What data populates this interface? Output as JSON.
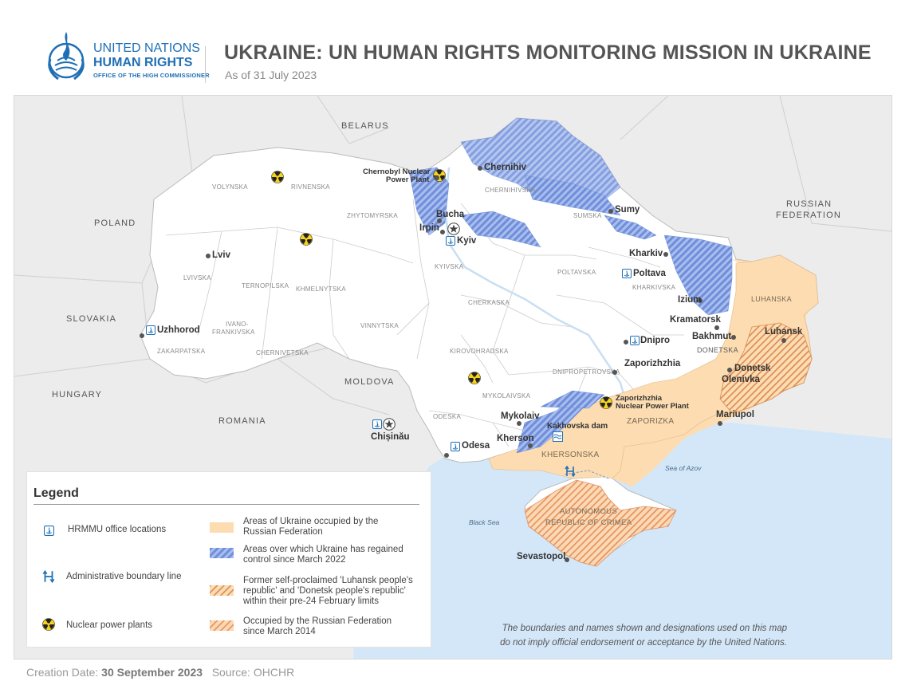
{
  "header": {
    "logo_line1": "UNITED NATIONS",
    "logo_line2": "HUMAN RIGHTS",
    "logo_line3": "OFFICE OF THE HIGH COMMISSIONER",
    "title": "UKRAINE: UN HUMAN RIGHTS MONITORING MISSION IN UKRAINE",
    "subtitle": "As of 31 July 2023"
  },
  "map": {
    "countries": {
      "belarus": "BELARUS",
      "russia_line1": "RUSSIAN",
      "russia_line2": "FEDERATION",
      "poland": "POLAND",
      "slovakia": "SLOVAKIA",
      "hungary": "HUNGARY",
      "romania": "ROMANIA",
      "moldova": "MOLDOVA"
    },
    "oblasts": {
      "volynska": "VOLYNSKA",
      "rivnenska": "RIVNENSKA",
      "zhytomyrska": "ZHYTOMYRSKA",
      "chernihivska": "CHERNIHIVSKA",
      "sumska": "SUMSKA",
      "lvivska": "LVIVSKA",
      "ternopilska": "TERNOPILSKA",
      "khmelnytska": "KHMELNYTSKA",
      "kyivska": "KYIVSKA",
      "poltavska": "POLTAVSKA",
      "kharkivska": "KHARKIVSKA",
      "luhanska": "LUHANSKA",
      "ivano_line1": "IVANO-",
      "ivano_line2": "FRANKIVSKA",
      "zakarpatska": "ZAKARPATSKA",
      "chernivetska": "CHERNIVETSKA",
      "vinnytska": "VINNYTSKA",
      "cherkaska": "CHERKASKA",
      "kirovohradska": "KIROVOHRADSKA",
      "dnipropetrovska": "DNIPROPETROVSKA",
      "donetska": "DONETSKA",
      "mykolaivska": "MYKOLAIVSKA",
      "odeska": "ODESKA",
      "zaporizka": "ZAPORIZKA",
      "khersonska": "KHERSONSKA",
      "crimea_line1": "AUTONOMOUS",
      "crimea_line2": "REPUBLIC OF CRIMEA"
    },
    "cities": {
      "chernobyl_line1": "Chernobyl Nuclear",
      "chernobyl_line2": "Power Plant",
      "chernihiv": "Chernihiv",
      "sumy": "Sumy",
      "bucha": "Bucha",
      "irpin": "Irpin",
      "kyiv": "Kyiv",
      "lviv": "Lviv",
      "kharkiv": "Kharkiv",
      "poltava": "Poltava",
      "izium": "Izium",
      "kramatorsk": "Kramatorsk",
      "bakhmut": "Bakhmut",
      "luhansk": "Luhansk",
      "uzhhorod": "Uzhhorod",
      "dnipro": "Dnipro",
      "zaporizhzhia": "Zaporizhzhia",
      "donetsk": "Donetsk",
      "olenivka": "Olenivka",
      "znpp_line1": "Zaporizhzhia",
      "znpp_line2": "Nuclear Power Plant",
      "mykolaiv": "Mykolaiv",
      "kakhovska": "Kakhovska dam",
      "kherson": "Kherson",
      "mariupol": "Mariupol",
      "chisinau": "Chișinău",
      "odesa": "Odesa",
      "sevastopol": "Sevastopol"
    },
    "seas": {
      "azov": "Sea of Azov",
      "black": "Black Sea"
    },
    "colors": {
      "ukraine_land": "#ffffff",
      "neighbor_land": "#ececec",
      "sea": "#d4e7f8",
      "occupied": "#fcdcb0",
      "regained": "#7b98dd",
      "pre2022": "#e9a06a",
      "crimea_hatch": "#ec9e6e"
    }
  },
  "legend": {
    "title": "Legend",
    "office": "HRMMU office locations",
    "boundary": "Administrative boundary line",
    "nuclear": "Nuclear power plants",
    "occupied_line1": "Areas of Ukraine occupied by the",
    "occupied_line2": "Russian Federation",
    "regained_line1": "Areas over which Ukraine has regained",
    "regained_line2": "control since March 2022",
    "former_line1": "Former self-proclaimed 'Luhansk people's",
    "former_line2": "republic' and 'Donetsk people's republic'",
    "former_line3": "within their pre-24 February limits",
    "crimea_line1": "Occupied by the Russian Federation",
    "crimea_line2": "since March 2014"
  },
  "disclaimer": {
    "line1": "The boundaries and names shown and designations used on this map",
    "line2": "do not imply official endorsement or acceptance by the United Nations."
  },
  "footer": {
    "creation_label": "Creation Date:",
    "creation_value": "30 September 2023",
    "source_label": "Source:",
    "source_value": "OHCHR"
  }
}
